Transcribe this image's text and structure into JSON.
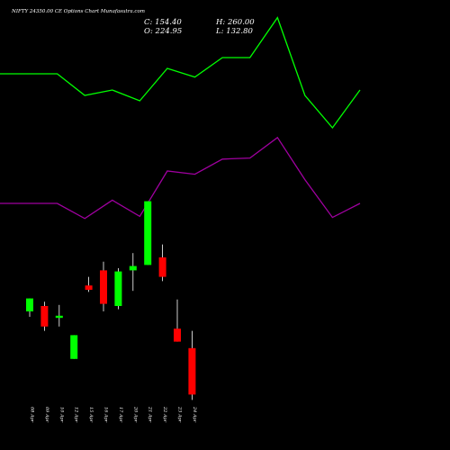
{
  "header": {
    "title": "NIFTY 24350.00  CE Options  Chart Munafasutra.com",
    "close_label": "C: 154.40",
    "high_label": "H: 260.00",
    "open_label": "O: 224.95",
    "low_label": "L: 132.80"
  },
  "colors": {
    "background": "#000000",
    "up_candle": "#00ff00",
    "down_candle": "#ff0000",
    "upper_band": "#00ff00",
    "lower_band": "#a000a0",
    "wick": "#ffffff",
    "text": "#ffffff"
  },
  "chart_data": {
    "type": "candlestick",
    "title": "NIFTY 24350.00  CE Options  Chart Munafasutra.com",
    "x_tick_labels": [
      "08 Apr",
      "09 Apr",
      "10 Apr",
      "12 Apr",
      "15 Apr",
      "16 Apr",
      "17 Apr",
      "20 Apr",
      "21 Apr",
      "22 Apr",
      "23 Apr",
      "24 Apr"
    ],
    "candles": [
      {
        "date": "08 Apr",
        "open": 220,
        "high": 232,
        "low": 215,
        "close": 232,
        "direction": "up"
      },
      {
        "date": "09 Apr",
        "open": 225,
        "high": 229,
        "low": 202,
        "close": 206,
        "direction": "down"
      },
      {
        "date": "10 Apr",
        "open": 214,
        "high": 226,
        "low": 206,
        "close": 216,
        "direction": "up"
      },
      {
        "date": "12 Apr",
        "open": 176,
        "high": 198,
        "low": 176,
        "close": 198,
        "direction": "up"
      },
      {
        "date": "15 Apr",
        "open": 244,
        "high": 252,
        "low": 238,
        "close": 240,
        "direction": "down"
      },
      {
        "date": "16 Apr",
        "open": 258,
        "high": 266,
        "low": 220,
        "close": 227,
        "direction": "down"
      },
      {
        "date": "17 Apr",
        "open": 225,
        "high": 260,
        "low": 222,
        "close": 257,
        "direction": "up"
      },
      {
        "date": "20 Apr",
        "open": 258,
        "high": 274,
        "low": 239,
        "close": 262,
        "direction": "up"
      },
      {
        "date": "21 Apr",
        "open": 263,
        "high": 322,
        "low": 263,
        "close": 322,
        "direction": "up"
      },
      {
        "date": "22 Apr",
        "open": 270,
        "high": 282,
        "low": 248,
        "close": 252,
        "direction": "down"
      },
      {
        "date": "23 Apr",
        "open": 204,
        "high": 231,
        "low": 192,
        "close": 192,
        "direction": "down"
      },
      {
        "date": "24 Apr",
        "open": 186,
        "high": 202,
        "low": 138,
        "close": 143,
        "direction": "down"
      }
    ],
    "series": [
      {
        "values": [
          440,
          440,
          420,
          425,
          415,
          445,
          437,
          455,
          455,
          492,
          420,
          390
        ]
      },
      {
        "values": [
          320,
          320,
          306,
          323,
          308,
          350,
          347,
          361,
          362,
          381,
          342,
          307
        ]
      }
    ],
    "series_extension_end_values": [
      425,
      320
    ],
    "ylim": [
      100,
      500
    ],
    "grid": false,
    "legend": "none"
  }
}
